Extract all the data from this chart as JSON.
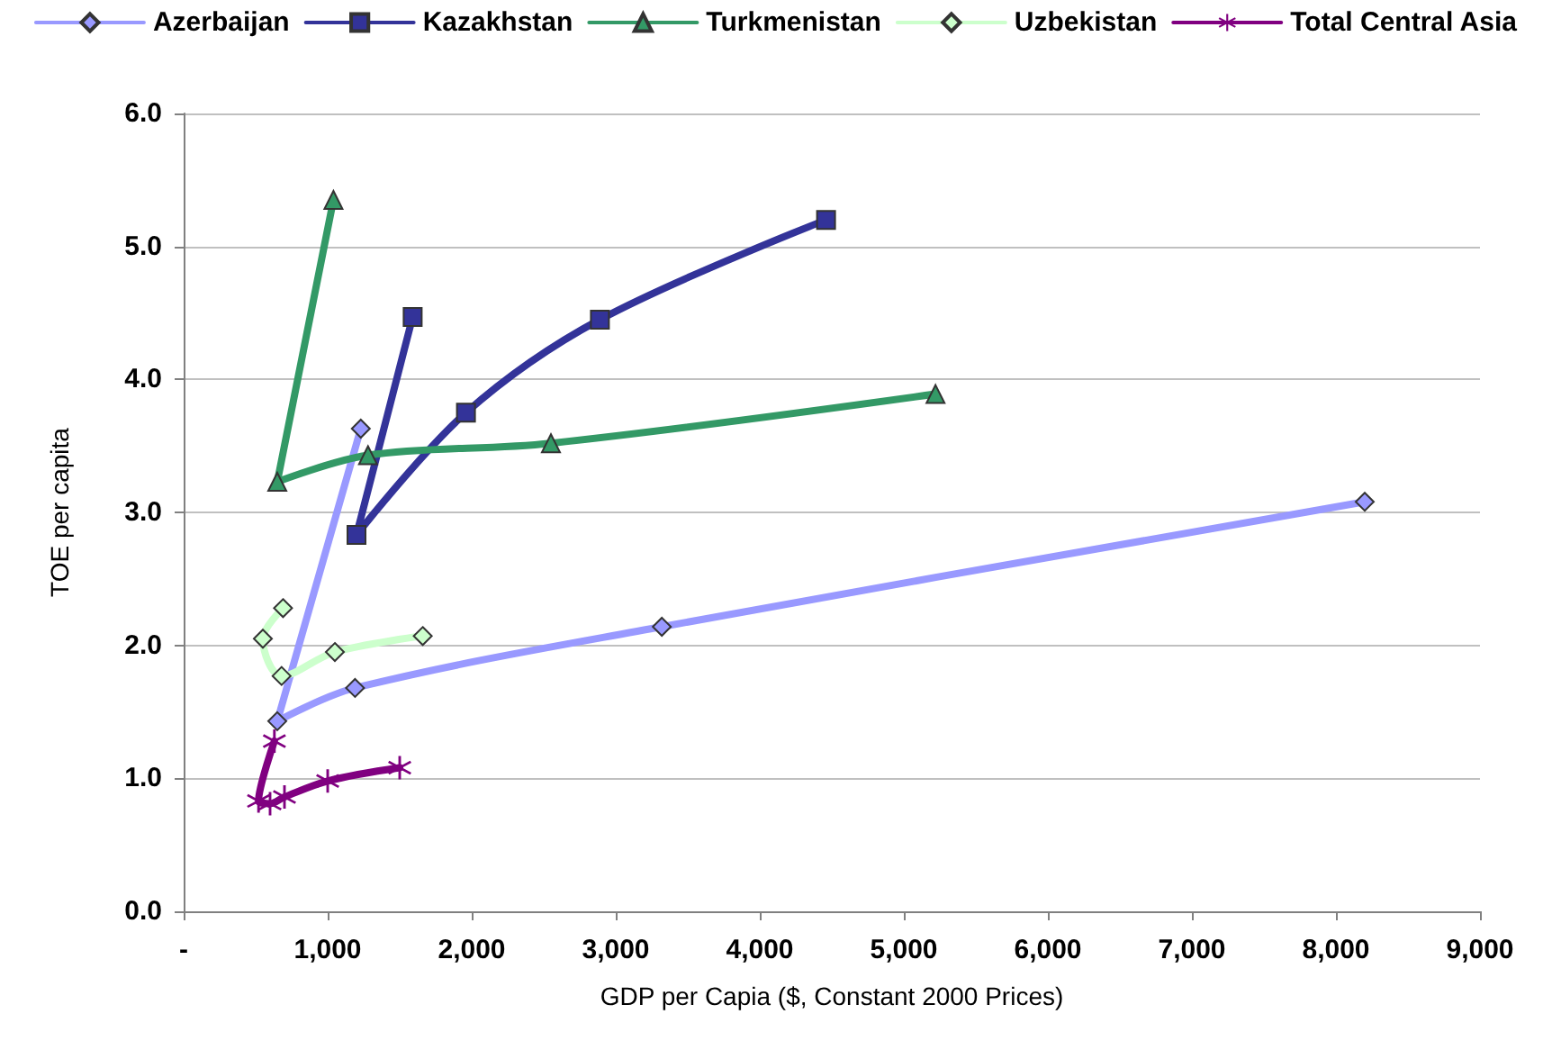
{
  "chart_data": {
    "type": "line",
    "xlabel": "GDP per Capia ($, Constant 2000 Prices)",
    "ylabel": "TOE per capita",
    "xlim": [
      0,
      9000
    ],
    "xticks": [
      {
        "value": 0,
        "label": "-"
      },
      {
        "value": 1000,
        "label": "1,000"
      },
      {
        "value": 2000,
        "label": "2,000"
      },
      {
        "value": 3000,
        "label": "3,000"
      },
      {
        "value": 4000,
        "label": "4,000"
      },
      {
        "value": 5000,
        "label": "5,000"
      },
      {
        "value": 6000,
        "label": "6,000"
      },
      {
        "value": 7000,
        "label": "7,000"
      },
      {
        "value": 8000,
        "label": "8,000"
      },
      {
        "value": 9000,
        "label": "9,000"
      }
    ],
    "ylim": [
      0,
      6
    ],
    "yticks": [
      {
        "value": 0,
        "label": "0.0"
      },
      {
        "value": 1,
        "label": "1.0"
      },
      {
        "value": 2,
        "label": "2.0"
      },
      {
        "value": 3,
        "label": "3.0"
      },
      {
        "value": 4,
        "label": "4.0"
      },
      {
        "value": 5,
        "label": "5.0"
      },
      {
        "value": 6,
        "label": "6.0"
      }
    ],
    "grid": "y",
    "legend": "top",
    "line_style": "solid",
    "series": [
      {
        "name": "Azerbaijan",
        "color": "#9999ff",
        "marker": "diamond",
        "x": [
          1230,
          650,
          1190,
          3320,
          8200
        ],
        "values": [
          3.63,
          1.43,
          1.68,
          2.14,
          3.08
        ]
      },
      {
        "name": "Kazakhstan",
        "color": "#333399",
        "marker": "square",
        "x": [
          1590,
          1200,
          1960,
          2890,
          4460
        ],
        "values": [
          4.47,
          2.83,
          3.75,
          4.45,
          5.2
        ]
      },
      {
        "name": "Turkmenistan",
        "color": "#339966",
        "marker": "triangle",
        "x": [
          1040,
          650,
          1280,
          2550,
          5220
        ],
        "values": [
          5.35,
          3.23,
          3.43,
          3.52,
          3.89
        ]
      },
      {
        "name": "Uzbekistan",
        "color": "#ccffcc",
        "marker": "diamond",
        "x": [
          690,
          550,
          680,
          1050,
          1660
        ],
        "values": [
          2.28,
          2.05,
          1.77,
          1.95,
          2.07
        ]
      },
      {
        "name": "Total Central Asia",
        "color": "#800080",
        "marker": "cross",
        "x": [
          630,
          520,
          600,
          700,
          1000,
          1500
        ],
        "values": [
          1.28,
          0.83,
          0.81,
          0.86,
          0.98,
          1.08
        ]
      }
    ]
  }
}
